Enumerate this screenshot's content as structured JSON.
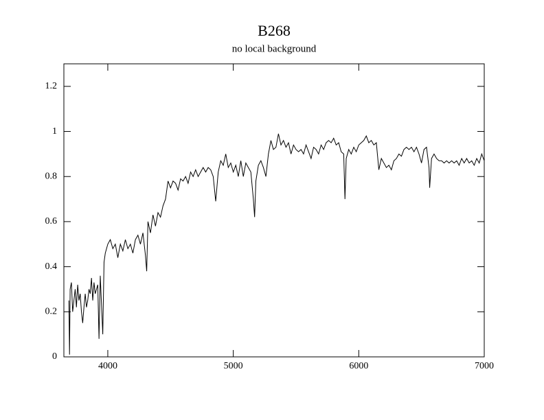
{
  "chart_data": {
    "type": "line",
    "title": "B268",
    "subtitle": "no local background",
    "x": [
      3690,
      3695,
      3700,
      3710,
      3720,
      3730,
      3740,
      3750,
      3760,
      3770,
      3780,
      3790,
      3800,
      3810,
      3820,
      3830,
      3840,
      3850,
      3860,
      3870,
      3880,
      3890,
      3900,
      3920,
      3930,
      3940,
      3960,
      3970,
      3980,
      4000,
      4020,
      4040,
      4060,
      4080,
      4100,
      4120,
      4140,
      4160,
      4180,
      4200,
      4220,
      4240,
      4260,
      4280,
      4300,
      4310,
      4320,
      4340,
      4360,
      4380,
      4400,
      4420,
      4440,
      4460,
      4480,
      4500,
      4520,
      4540,
      4560,
      4580,
      4600,
      4620,
      4640,
      4660,
      4680,
      4700,
      4720,
      4740,
      4760,
      4780,
      4800,
      4820,
      4840,
      4860,
      4880,
      4900,
      4920,
      4940,
      4960,
      4980,
      5000,
      5020,
      5040,
      5060,
      5080,
      5100,
      5120,
      5140,
      5160,
      5170,
      5180,
      5200,
      5220,
      5240,
      5260,
      5280,
      5300,
      5320,
      5340,
      5360,
      5380,
      5400,
      5420,
      5440,
      5460,
      5480,
      5500,
      5520,
      5540,
      5560,
      5580,
      5600,
      5620,
      5640,
      5660,
      5680,
      5700,
      5720,
      5740,
      5760,
      5780,
      5800,
      5820,
      5840,
      5860,
      5880,
      5890,
      5900,
      5920,
      5940,
      5960,
      5980,
      6000,
      6020,
      6040,
      6060,
      6080,
      6100,
      6120,
      6140,
      6160,
      6180,
      6200,
      6220,
      6240,
      6260,
      6280,
      6300,
      6320,
      6340,
      6360,
      6380,
      6400,
      6420,
      6440,
      6460,
      6480,
      6500,
      6520,
      6540,
      6560,
      6565,
      6580,
      6600,
      6620,
      6640,
      6660,
      6680,
      6700,
      6720,
      6740,
      6760,
      6780,
      6800,
      6820,
      6840,
      6860,
      6880,
      6900,
      6920,
      6940,
      6960,
      6980,
      7000
    ],
    "series": [
      {
        "color": "#000000",
        "values": [
          0.25,
          0.01,
          0.3,
          0.33,
          0.2,
          0.25,
          0.3,
          0.22,
          0.32,
          0.25,
          0.28,
          0.2,
          0.15,
          0.22,
          0.28,
          0.22,
          0.25,
          0.3,
          0.28,
          0.35,
          0.25,
          0.33,
          0.28,
          0.32,
          0.08,
          0.36,
          0.1,
          0.42,
          0.46,
          0.5,
          0.52,
          0.48,
          0.5,
          0.44,
          0.5,
          0.47,
          0.52,
          0.48,
          0.5,
          0.46,
          0.52,
          0.54,
          0.5,
          0.55,
          0.45,
          0.38,
          0.6,
          0.55,
          0.63,
          0.58,
          0.64,
          0.62,
          0.67,
          0.7,
          0.78,
          0.75,
          0.78,
          0.77,
          0.74,
          0.79,
          0.78,
          0.8,
          0.77,
          0.82,
          0.8,
          0.83,
          0.8,
          0.82,
          0.84,
          0.82,
          0.84,
          0.83,
          0.8,
          0.69,
          0.82,
          0.87,
          0.85,
          0.9,
          0.84,
          0.86,
          0.82,
          0.85,
          0.8,
          0.87,
          0.8,
          0.86,
          0.84,
          0.82,
          0.7,
          0.62,
          0.78,
          0.85,
          0.87,
          0.84,
          0.8,
          0.9,
          0.96,
          0.92,
          0.93,
          0.99,
          0.94,
          0.96,
          0.93,
          0.95,
          0.9,
          0.94,
          0.92,
          0.91,
          0.92,
          0.9,
          0.94,
          0.91,
          0.88,
          0.93,
          0.92,
          0.9,
          0.94,
          0.92,
          0.95,
          0.96,
          0.95,
          0.97,
          0.94,
          0.95,
          0.91,
          0.9,
          0.7,
          0.88,
          0.92,
          0.9,
          0.93,
          0.91,
          0.94,
          0.95,
          0.96,
          0.98,
          0.95,
          0.96,
          0.94,
          0.95,
          0.83,
          0.88,
          0.86,
          0.84,
          0.85,
          0.83,
          0.87,
          0.88,
          0.9,
          0.89,
          0.92,
          0.93,
          0.92,
          0.93,
          0.91,
          0.93,
          0.9,
          0.86,
          0.92,
          0.93,
          0.84,
          0.75,
          0.88,
          0.9,
          0.88,
          0.87,
          0.87,
          0.86,
          0.87,
          0.86,
          0.87,
          0.86,
          0.87,
          0.85,
          0.88,
          0.86,
          0.88,
          0.86,
          0.87,
          0.85,
          0.88,
          0.86,
          0.9,
          0.87
        ]
      }
    ],
    "xlim": [
      3650,
      7000
    ],
    "xticks": [
      4000,
      5000,
      6000,
      7000
    ],
    "ylim": [
      0,
      1.3
    ],
    "yticks": [
      0,
      0.2,
      0.4,
      0.6,
      0.8,
      1,
      1.2
    ],
    "grid": false
  }
}
